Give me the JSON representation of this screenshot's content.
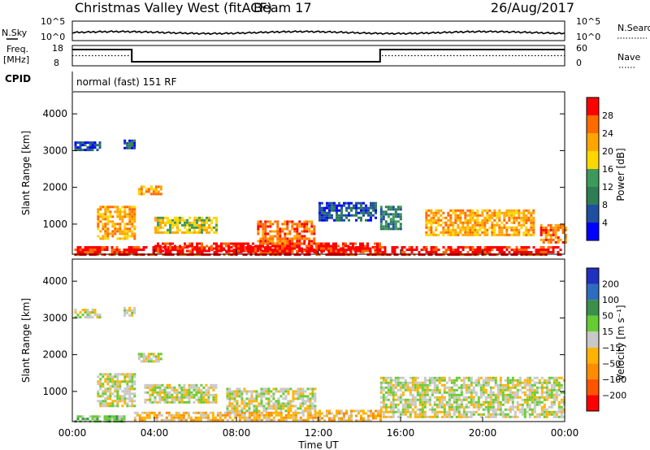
{
  "header": {
    "station": "Christmas Valley West (fitACF)",
    "beam": "Beam 17",
    "date": "26/Aug/2017"
  },
  "mode": {
    "cpid_label": "CPID",
    "cpid_text": "normal (fast) 151 RF"
  },
  "colors": {
    "power": [
      "#0000ff",
      "#1f4fa0",
      "#2e7d55",
      "#3e9a5a",
      "#ffd700",
      "#ffa500",
      "#ff6a00",
      "#ff0000"
    ],
    "velocity": [
      "#2030c0",
      "#2e6cbf",
      "#3a8f4a",
      "#66cc33",
      "#c8c8c8",
      "#ffb300",
      "#ff8c00",
      "#ff5500",
      "#ff0000"
    ]
  },
  "chart_data": [
    {
      "type": "line",
      "name": "noise-panel",
      "left_label": "N.Sky",
      "right_label": "N.Search",
      "left_ticks": [
        "10^5",
        "10^0"
      ],
      "right_ticks": [
        "10^5",
        "10^0"
      ]
    },
    {
      "type": "line",
      "name": "frequency-nave-panel",
      "left_label_1": "Freq.",
      "left_label_2": "[MHz]",
      "right_label": "Nave",
      "left_ticks": [
        "18",
        "8"
      ],
      "right_ticks": [
        "60",
        "0"
      ],
      "x": [
        0,
        2.9,
        2.9,
        15,
        15,
        24
      ],
      "freq_mhz": [
        16,
        16,
        10,
        10,
        16,
        16
      ],
      "nave": [
        30,
        30,
        12,
        12,
        30,
        30
      ]
    },
    {
      "type": "heatmap",
      "name": "power-panel",
      "ylabel": "Slant Range [km]",
      "yticks": [
        "1000",
        "2000",
        "3000",
        "4000"
      ],
      "ytick_values": [
        1000,
        2000,
        3000,
        4000
      ],
      "ylim": [
        180,
        4600
      ],
      "xlim": [
        0,
        24
      ],
      "colorbar_label": "Power [dB]",
      "colorbar_ticks": [
        "4",
        "8",
        "12",
        "16",
        "20",
        "24",
        "28"
      ],
      "colorbar_range": [
        0,
        32
      ],
      "regions": [
        {
          "t0": 0.1,
          "t1": 23.8,
          "r0": 200,
          "r1": 400,
          "level": 7
        },
        {
          "t0": 4.0,
          "t1": 15.0,
          "r0": 250,
          "r1": 500,
          "level": 7
        },
        {
          "t0": 1.2,
          "t1": 3.0,
          "r0": 600,
          "r1": 1500,
          "level": 5
        },
        {
          "t0": 4.0,
          "t1": 7.0,
          "r0": 800,
          "r1": 1200,
          "level": 4
        },
        {
          "t0": 9.0,
          "t1": 11.8,
          "r0": 500,
          "r1": 1100,
          "level": 6
        },
        {
          "t0": 17.2,
          "t1": 22.5,
          "r0": 700,
          "r1": 1400,
          "level": 5
        },
        {
          "t0": 22.8,
          "t1": 24.0,
          "r0": 500,
          "r1": 1000,
          "level": 6
        },
        {
          "t0": 3.2,
          "t1": 4.3,
          "r0": 1800,
          "r1": 2050,
          "level": 5
        },
        {
          "t0": 0.1,
          "t1": 1.4,
          "r0": 3000,
          "r1": 3250,
          "level": 1
        },
        {
          "t0": 2.5,
          "t1": 3.0,
          "r0": 3050,
          "r1": 3300,
          "level": 1
        },
        {
          "t0": 12.0,
          "t1": 14.8,
          "r0": 1100,
          "r1": 1600,
          "level": 1
        },
        {
          "t0": 15.0,
          "t1": 16.0,
          "r0": 900,
          "r1": 1500,
          "level": 2
        }
      ]
    },
    {
      "type": "heatmap",
      "name": "velocity-panel",
      "ylabel": "Slant Range [km]",
      "yticks": [
        "1000",
        "2000",
        "3000",
        "4000"
      ],
      "ytick_values": [
        1000,
        2000,
        3000,
        4000
      ],
      "ylim": [
        180,
        4600
      ],
      "xlim": [
        0,
        24
      ],
      "xlabel": "Time UT",
      "xticks": [
        "00:00",
        "04:00",
        "08:00",
        "12:00",
        "16:00",
        "20:00",
        "00:00"
      ],
      "xtick_values": [
        0,
        4,
        8,
        12,
        16,
        20,
        24
      ],
      "colorbar_label": "Velocity [m s⁻¹]",
      "colorbar_ticks": [
        "200",
        "100",
        "50",
        "15",
        "−15",
        "−50",
        "−100",
        "−200"
      ],
      "colorbar_range": [
        -250,
        250
      ],
      "regions": [
        {
          "t0": 0.1,
          "t1": 2.5,
          "r0": 200,
          "r1": 350,
          "level": 3
        },
        {
          "t0": 3.0,
          "t1": 12.0,
          "r0": 200,
          "r1": 450,
          "level": 5
        },
        {
          "t0": 12.0,
          "t1": 15.0,
          "r0": 200,
          "r1": 500,
          "level": 5
        },
        {
          "t0": 1.2,
          "t1": 3.0,
          "r0": 600,
          "r1": 1500,
          "level": 4
        },
        {
          "t0": 3.5,
          "t1": 7.0,
          "r0": 700,
          "r1": 1200,
          "level": 4
        },
        {
          "t0": 7.5,
          "t1": 11.8,
          "r0": 500,
          "r1": 1100,
          "level": 4
        },
        {
          "t0": 15.0,
          "t1": 24.0,
          "r0": 300,
          "r1": 1400,
          "level": 4
        },
        {
          "t0": 3.2,
          "t1": 4.3,
          "r0": 1800,
          "r1": 2050,
          "level": 4
        },
        {
          "t0": 0.1,
          "t1": 1.4,
          "r0": 3000,
          "r1": 3250,
          "level": 4
        },
        {
          "t0": 2.5,
          "t1": 3.0,
          "r0": 3050,
          "r1": 3300,
          "level": 4
        }
      ]
    }
  ]
}
